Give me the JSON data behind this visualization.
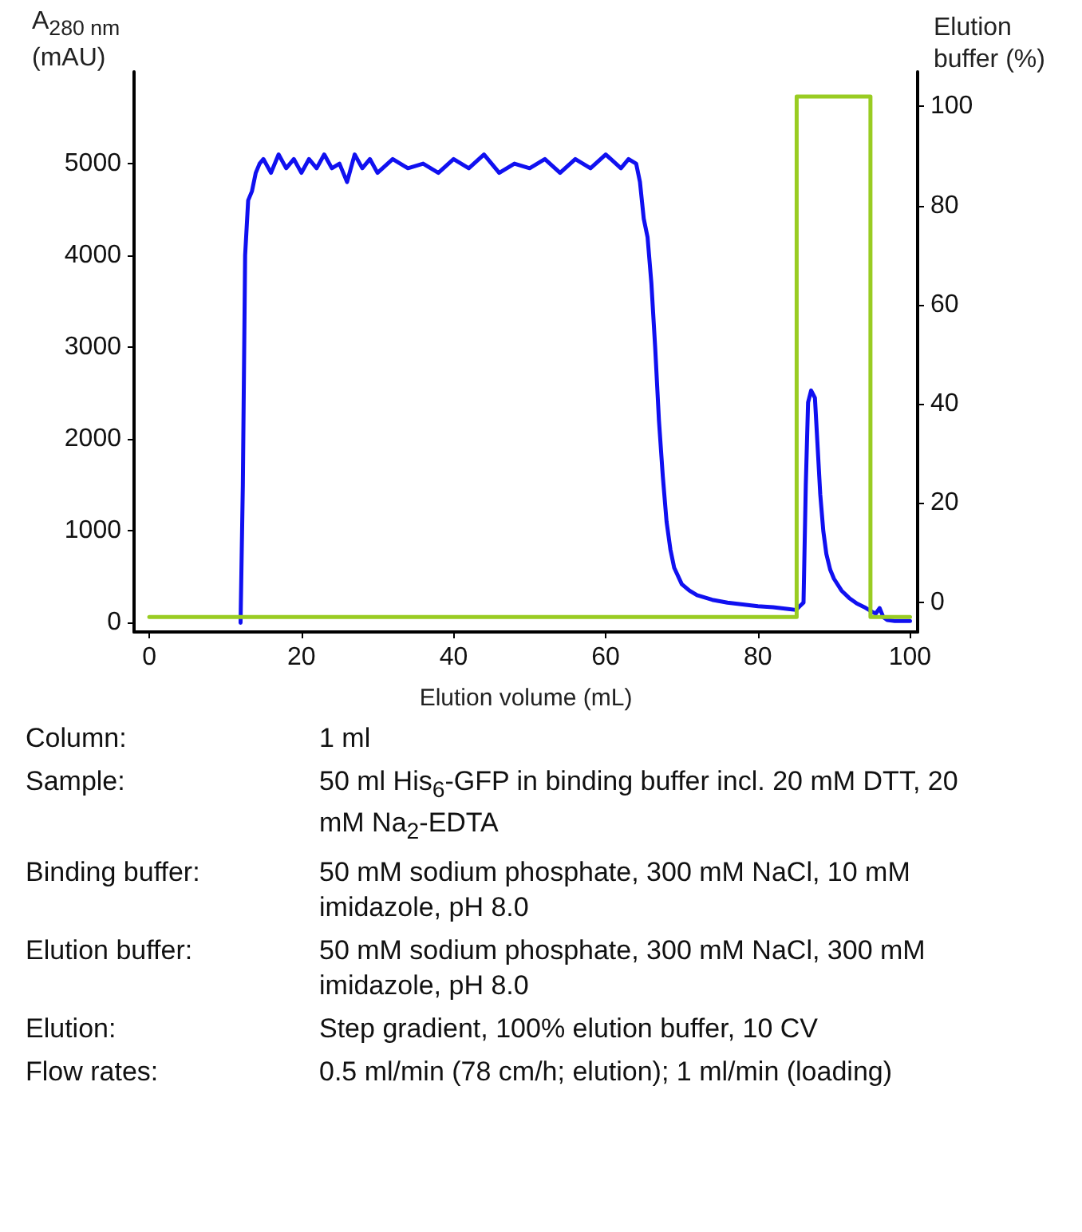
{
  "chart_data": {
    "type": "line",
    "xlabel": "Elution volume (mL)",
    "ylabel": "A$_{280 nm}$ (mAU)",
    "y2label": "Elution buffer (%)",
    "xlim": [
      -2,
      101
    ],
    "xticks": [
      0,
      20,
      40,
      60,
      80,
      100
    ],
    "ylim": [
      -100,
      6000
    ],
    "yticks": [
      0,
      1000,
      2000,
      3000,
      4000,
      5000
    ],
    "y2lim": [
      -6,
      107
    ],
    "y2ticks": [
      0,
      20,
      40,
      60,
      80,
      100
    ],
    "grid": false,
    "marker": "none",
    "line_style": "solid",
    "series": [
      {
        "color": "#1010f0",
        "x": [
          12,
          12.3,
          12.6,
          13,
          13.5,
          14,
          14.5,
          15,
          16,
          17,
          18,
          19,
          20,
          21,
          22,
          23,
          24,
          25,
          26,
          27,
          28,
          29,
          30,
          32,
          34,
          36,
          38,
          40,
          42,
          44,
          46,
          48,
          50,
          52,
          54,
          56,
          58,
          60,
          62,
          63,
          64,
          64.5,
          65,
          65.5,
          66,
          66.5,
          67,
          67.5,
          68,
          68.5,
          69,
          70,
          71,
          72,
          74,
          76,
          78,
          80,
          82,
          84,
          85,
          85.5,
          86,
          86.3,
          86.6,
          87,
          87.5,
          87.8,
          88.2,
          88.6,
          89,
          89.5,
          90,
          91,
          92,
          93,
          94,
          95,
          95.5,
          96,
          96.5,
          97,
          98,
          99,
          100
        ],
        "values": [
          0,
          1500,
          4000,
          4600,
          4700,
          4900,
          5000,
          5050,
          4900,
          5100,
          4950,
          5050,
          4900,
          5050,
          4950,
          5100,
          4950,
          5000,
          4800,
          5100,
          4950,
          5050,
          4900,
          5050,
          4950,
          5000,
          4900,
          5050,
          4950,
          5100,
          4900,
          5000,
          4950,
          5050,
          4900,
          5050,
          4950,
          5100,
          4950,
          5050,
          5000,
          4800,
          4400,
          4200,
          3700,
          3000,
          2200,
          1600,
          1100,
          800,
          600,
          420,
          350,
          300,
          250,
          220,
          200,
          180,
          170,
          150,
          140,
          180,
          220,
          1500,
          2400,
          2530,
          2450,
          2000,
          1400,
          1000,
          750,
          580,
          480,
          350,
          270,
          210,
          170,
          120,
          100,
          160,
          60,
          30,
          20,
          20,
          20
        ]
      },
      {
        "color": "#99cc22",
        "axis": "y2",
        "x": [
          0,
          85.1,
          85.1,
          94.8,
          94.8,
          100
        ],
        "values": [
          -3,
          -3,
          102,
          102,
          -3,
          -3
        ]
      }
    ],
    "annotations": [
      "Column: 1 ml",
      "Sample: 50 ml His$_{6}$-GFP in binding buffer incl. 20 mM DTT, 20 mM Na$_{2}$-EDTA",
      "Binding buffer: 50 mM sodium phosphate, 300 mM NaCl, 10 mM imidazole, pH 8.0",
      "Elution buffer: 50 mM sodium phosphate, 300 mM NaCl, 300 mM imidazole, pH 8.0",
      "Elution: Step gradient, 100% elution buffer, 10 CV",
      "Flow rates: 0.5 ml/min (78 cm/h; elution); 1 ml/min (loading)"
    ]
  }
}
